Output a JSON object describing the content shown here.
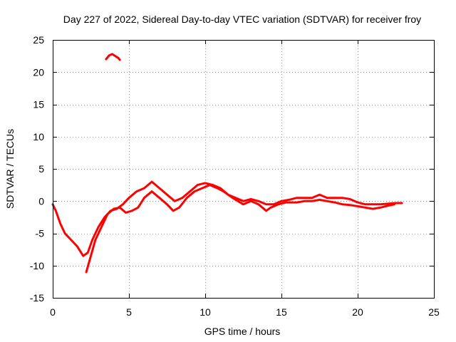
{
  "chart_data": {
    "type": "line",
    "title": "Day 227 of 2022, Sidereal Day-to-day VTEC variation (SDTVAR) for receiver froy",
    "xlabel": "GPS time / hours",
    "ylabel": "SDTVAR / TECUs",
    "xlim": [
      0,
      25
    ],
    "ylim": [
      -15,
      25
    ],
    "xticks": [
      0,
      5,
      10,
      15,
      20,
      25
    ],
    "yticks": [
      -15,
      -10,
      -5,
      0,
      5,
      10,
      15,
      20,
      25
    ],
    "xtick_labels": [
      "0",
      "5",
      "10",
      "15",
      "20",
      "25"
    ],
    "ytick_labels": [
      "-15",
      "-10",
      "-5",
      "0",
      "5",
      "10",
      "15",
      "20",
      "25"
    ],
    "grid": true,
    "color": "#ff0000",
    "series": [
      {
        "name": "trace-a",
        "points": [
          [
            0.0,
            -0.5
          ],
          [
            0.2,
            -1.5
          ],
          [
            0.5,
            -3.5
          ],
          [
            0.8,
            -5.0
          ],
          [
            1.2,
            -6.0
          ],
          [
            1.6,
            -7.0
          ],
          [
            2.0,
            -8.5
          ],
          [
            2.3,
            -8.0
          ],
          [
            2.6,
            -6.0
          ],
          [
            3.0,
            -4.0
          ],
          [
            3.4,
            -2.5
          ],
          [
            3.8,
            -1.5
          ],
          [
            4.2,
            -1.2
          ],
          [
            4.6,
            -0.5
          ],
          [
            5.0,
            0.5
          ],
          [
            5.5,
            1.5
          ],
          [
            6.0,
            2.0
          ],
          [
            6.5,
            3.0
          ],
          [
            7.0,
            2.0
          ],
          [
            7.5,
            1.0
          ],
          [
            8.0,
            0.0
          ],
          [
            8.5,
            0.5
          ],
          [
            9.0,
            1.5
          ],
          [
            9.5,
            2.5
          ],
          [
            10.0,
            2.8
          ],
          [
            10.5,
            2.5
          ],
          [
            11.0,
            2.0
          ],
          [
            11.5,
            1.0
          ],
          [
            12.0,
            0.5
          ],
          [
            12.5,
            0.0
          ],
          [
            13.0,
            0.3
          ],
          [
            13.5,
            0.0
          ],
          [
            14.0,
            -0.5
          ],
          [
            14.5,
            -0.5
          ],
          [
            15.0,
            0.0
          ],
          [
            15.5,
            0.2
          ],
          [
            16.0,
            0.5
          ],
          [
            16.5,
            0.5
          ],
          [
            17.0,
            0.5
          ],
          [
            17.5,
            1.0
          ],
          [
            18.0,
            0.5
          ],
          [
            18.5,
            0.5
          ],
          [
            19.0,
            0.5
          ],
          [
            19.5,
            0.3
          ],
          [
            20.0,
            -0.2
          ],
          [
            20.5,
            -0.5
          ],
          [
            21.0,
            -0.5
          ],
          [
            21.5,
            -0.5
          ],
          [
            22.0,
            -0.4
          ],
          [
            22.5,
            -0.3
          ],
          [
            22.9,
            -0.3
          ]
        ]
      },
      {
        "name": "trace-b",
        "points": [
          [
            2.2,
            -11.0
          ],
          [
            2.5,
            -8.5
          ],
          [
            2.8,
            -6.0
          ],
          [
            3.2,
            -4.0
          ],
          [
            3.6,
            -2.0
          ],
          [
            4.0,
            -1.2
          ],
          [
            4.4,
            -1.0
          ],
          [
            4.8,
            -1.8
          ],
          [
            5.2,
            -1.5
          ],
          [
            5.6,
            -1.0
          ],
          [
            6.0,
            0.5
          ],
          [
            6.5,
            1.5
          ],
          [
            7.0,
            0.5
          ],
          [
            7.5,
            -0.5
          ],
          [
            7.9,
            -1.5
          ],
          [
            8.3,
            -1.0
          ],
          [
            8.8,
            0.5
          ],
          [
            9.3,
            1.5
          ],
          [
            9.8,
            2.0
          ],
          [
            10.3,
            2.5
          ],
          [
            10.8,
            2.0
          ],
          [
            11.2,
            1.5
          ],
          [
            11.8,
            0.5
          ],
          [
            12.5,
            -0.5
          ],
          [
            13.0,
            0.0
          ],
          [
            13.5,
            -0.5
          ],
          [
            14.0,
            -1.5
          ],
          [
            14.3,
            -1.0
          ],
          [
            14.8,
            -0.5
          ],
          [
            15.3,
            -0.2
          ],
          [
            16.0,
            -0.2
          ],
          [
            16.5,
            0.0
          ],
          [
            17.0,
            0.0
          ],
          [
            17.5,
            0.2
          ],
          [
            18.0,
            0.0
          ],
          [
            18.5,
            -0.2
          ],
          [
            19.0,
            -0.5
          ],
          [
            19.5,
            -0.6
          ],
          [
            20.0,
            -0.8
          ],
          [
            20.5,
            -1.0
          ],
          [
            21.0,
            -1.2
          ],
          [
            21.5,
            -1.0
          ],
          [
            22.0,
            -0.7
          ],
          [
            22.4,
            -0.5
          ]
        ]
      },
      {
        "name": "trace-c",
        "points": [
          [
            3.5,
            22.0
          ],
          [
            3.7,
            22.6
          ],
          [
            3.9,
            22.8
          ],
          [
            4.1,
            22.5
          ],
          [
            4.3,
            22.2
          ],
          [
            4.4,
            21.9
          ]
        ]
      }
    ]
  }
}
